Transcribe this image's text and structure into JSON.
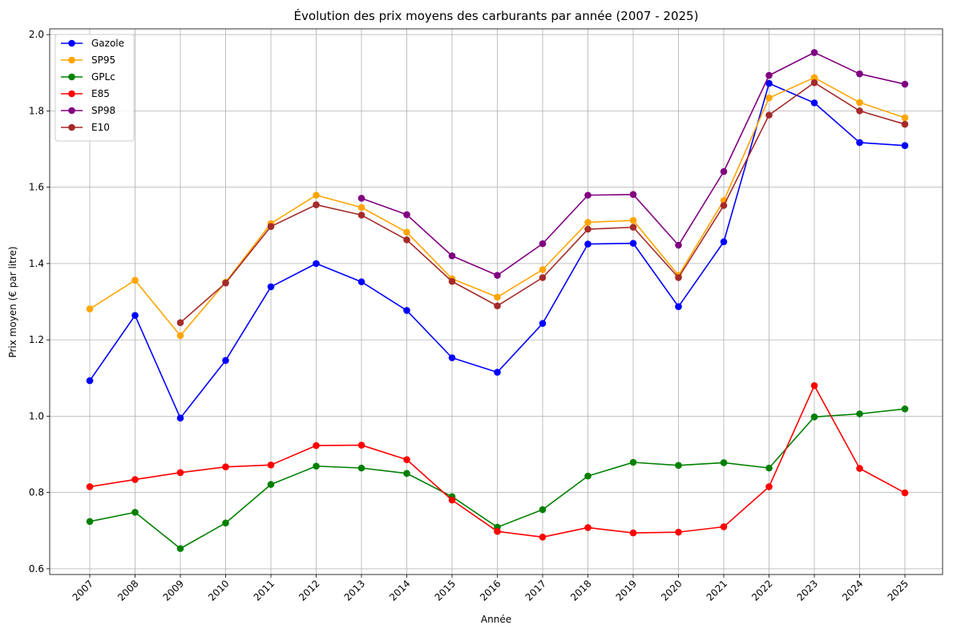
{
  "chart_data": {
    "type": "line",
    "title": "Évolution des prix moyens des carburants par année (2007 - 2025)",
    "xlabel": "Année",
    "ylabel": "Prix moyen (€ par litre)",
    "x": [
      "2007",
      "2008",
      "2009",
      "2010",
      "2011",
      "2012",
      "2013",
      "2014",
      "2015",
      "2016",
      "2017",
      "2018",
      "2019",
      "2020",
      "2021",
      "2022",
      "2023",
      "2024",
      "2025"
    ],
    "ylim": [
      0.585,
      2.015
    ],
    "yticks": [
      "0.6",
      "0.8",
      "1.0",
      "1.2",
      "1.4",
      "1.6",
      "1.8",
      "2.0"
    ],
    "grid": true,
    "legend_position": "top-left",
    "series": [
      {
        "name": "Gazole",
        "color": "#0000ff",
        "values": [
          1.093,
          1.264,
          0.995,
          1.146,
          1.339,
          1.4,
          1.352,
          1.277,
          1.153,
          1.115,
          1.243,
          1.451,
          1.453,
          1.287,
          1.457,
          1.872,
          1.821,
          1.717,
          1.709
        ]
      },
      {
        "name": "SP95",
        "color": "#ffa500",
        "values": [
          1.281,
          1.356,
          1.211,
          1.351,
          1.505,
          1.579,
          1.547,
          1.482,
          1.36,
          1.312,
          1.384,
          1.508,
          1.513,
          1.369,
          1.565,
          1.834,
          1.887,
          1.822,
          1.782
        ]
      },
      {
        "name": "GPLc",
        "color": "#008000",
        "values": [
          0.724,
          0.748,
          0.653,
          0.72,
          0.821,
          0.869,
          0.864,
          0.85,
          0.789,
          0.709,
          0.755,
          0.843,
          0.879,
          0.871,
          0.878,
          0.864,
          0.998,
          1.006,
          1.019
        ]
      },
      {
        "name": "E85",
        "color": "#ff0000",
        "values": [
          0.815,
          0.834,
          0.852,
          0.867,
          0.872,
          0.923,
          0.924,
          0.886,
          0.78,
          0.698,
          0.683,
          0.708,
          0.694,
          0.696,
          0.71,
          0.815,
          1.08,
          0.863,
          0.799
        ]
      },
      {
        "name": "SP98",
        "color": "#800080",
        "values": [
          null,
          null,
          null,
          null,
          null,
          null,
          1.571,
          1.528,
          1.42,
          1.369,
          1.452,
          1.579,
          1.581,
          1.448,
          1.641,
          1.893,
          1.953,
          1.897,
          1.87
        ]
      },
      {
        "name": "E10",
        "color": "#a52a2a",
        "values": [
          null,
          null,
          1.245,
          1.349,
          1.497,
          1.554,
          1.527,
          1.462,
          1.353,
          1.289,
          1.363,
          1.49,
          1.495,
          1.363,
          1.552,
          1.789,
          1.874,
          1.8,
          1.765
        ]
      }
    ]
  }
}
